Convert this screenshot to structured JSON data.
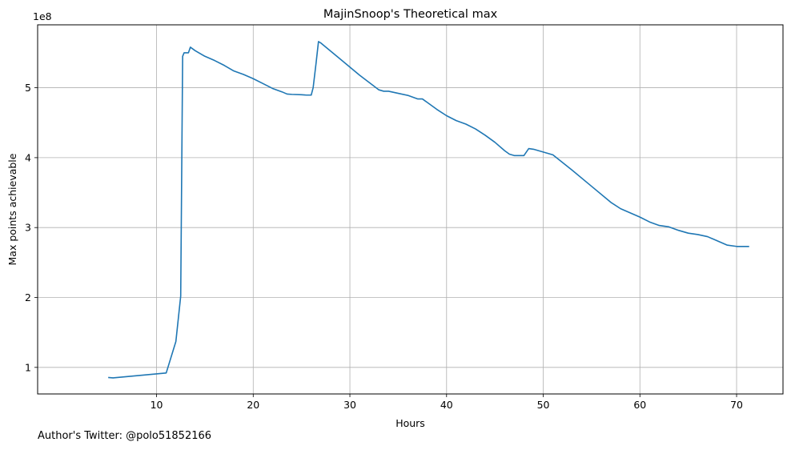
{
  "chart_data": {
    "type": "line",
    "title": "MajinSnoop's Theoretical max",
    "xlabel": "Hours",
    "ylabel": "Max points achievable",
    "offset_label": "1e8",
    "xlim": [
      -2.3,
      74.8
    ],
    "ylim": [
      0.62,
      5.9
    ],
    "xticks": [
      10,
      20,
      30,
      40,
      50,
      60,
      70
    ],
    "yticks": [
      1,
      2,
      3,
      4,
      5
    ],
    "grid": true,
    "series": [
      {
        "color": "#1f77b4",
        "x": [
          5.0,
          5.5,
          11.0,
          12.0,
          12.5,
          12.7,
          12.85,
          13.0,
          13.3,
          13.5,
          14.0,
          15.0,
          16.0,
          17.0,
          18.0,
          19.0,
          20.0,
          21.0,
          22.0,
          23.0,
          23.5,
          24.0,
          25.0,
          25.5,
          26.0,
          26.2,
          26.5,
          26.75,
          27.0,
          29.0,
          31.0,
          33.0,
          33.5,
          34.0,
          35.0,
          36.0,
          37.0,
          37.5,
          38.0,
          39.0,
          40.0,
          41.0,
          42.0,
          43.0,
          44.0,
          45.0,
          46.0,
          46.5,
          47.0,
          47.5,
          48.0,
          48.5,
          49.0,
          50.0,
          51.0,
          53.0,
          55.0,
          57.0,
          58.0,
          59.0,
          60.0,
          61.0,
          62.0,
          62.5,
          63.0,
          64.0,
          65.0,
          66.0,
          67.0,
          68.0,
          69.0,
          70.0,
          71.0,
          71.3
        ],
        "y": [
          0.855,
          0.85,
          0.92,
          1.37,
          2.02,
          5.45,
          5.5,
          5.5,
          5.5,
          5.58,
          5.53,
          5.45,
          5.39,
          5.32,
          5.24,
          5.19,
          5.13,
          5.06,
          4.99,
          4.94,
          4.91,
          4.905,
          4.9,
          4.895,
          4.895,
          5.0,
          5.35,
          5.66,
          5.64,
          5.41,
          5.18,
          4.97,
          4.95,
          4.95,
          4.92,
          4.89,
          4.84,
          4.84,
          4.79,
          4.69,
          4.6,
          4.53,
          4.48,
          4.41,
          4.32,
          4.22,
          4.1,
          4.05,
          4.03,
          4.03,
          4.03,
          4.13,
          4.12,
          4.08,
          4.04,
          3.82,
          3.59,
          3.36,
          3.27,
          3.21,
          3.15,
          3.08,
          3.03,
          3.02,
          3.01,
          2.96,
          2.92,
          2.9,
          2.87,
          2.81,
          2.75,
          2.73,
          2.73,
          2.73
        ]
      }
    ]
  },
  "footnote": "Author's Twitter: @polo51852166"
}
